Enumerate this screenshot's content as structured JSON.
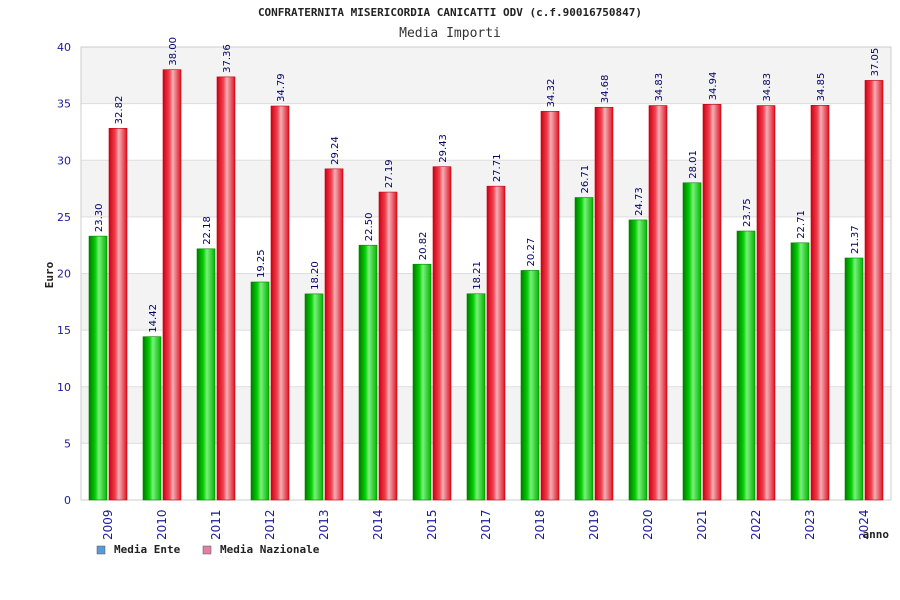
{
  "chart_data": {
    "type": "bar",
    "title": "CONFRATERNITA MISERICORDIA CANICATTI ODV (c.f.90016750847)",
    "subtitle": "Media Importi",
    "ylabel": "Euro",
    "xlabel": "anno",
    "ylim": [
      0,
      40
    ],
    "yticks": [
      0,
      5,
      10,
      15,
      20,
      25,
      30,
      35,
      40
    ],
    "categories": [
      "2009",
      "2010",
      "2011",
      "2012",
      "2013",
      "2014",
      "2015",
      "2017",
      "2018",
      "2019",
      "2020",
      "2021",
      "2022",
      "2023",
      "2024"
    ],
    "series": [
      {
        "name": "Media Ente",
        "color": "#00b000",
        "values": [
          23.3,
          14.42,
          22.18,
          19.25,
          18.2,
          22.5,
          20.82,
          18.21,
          20.27,
          26.71,
          24.73,
          28.01,
          23.75,
          22.71,
          21.37
        ],
        "labels": [
          "23.30",
          "14.42",
          "22.18",
          "19.25",
          "18.20",
          "22.50",
          "20.82",
          "18.21",
          "20.27",
          "26.71",
          "24.73",
          "28.01",
          "23.75",
          "22.71",
          "21.37"
        ]
      },
      {
        "name": "Media Nazionale",
        "color": "#e01020",
        "values": [
          32.82,
          38.0,
          37.36,
          34.79,
          29.24,
          27.19,
          29.43,
          27.71,
          34.32,
          34.68,
          34.83,
          34.94,
          34.83,
          34.85,
          37.05
        ],
        "labels": [
          "32.82",
          "38.00",
          "37.36",
          "34.79",
          "29.24",
          "27.19",
          "29.43",
          "27.71",
          "34.32",
          "34.68",
          "34.83",
          "34.94",
          "34.83",
          "34.85",
          "37.05"
        ]
      }
    ],
    "legend": [
      {
        "label": "Media Ente",
        "color": "#5b9bd5"
      },
      {
        "label": "Media Nazionale",
        "color": "#e07fa8"
      }
    ],
    "legend_position": "bottom-left",
    "grid": true
  }
}
